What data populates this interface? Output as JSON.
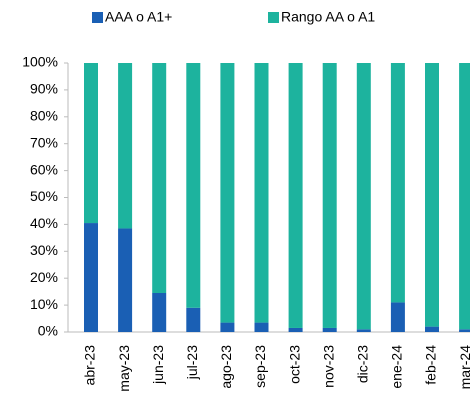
{
  "chart_data": {
    "type": "stacked_bar",
    "categories": [
      "abr-23",
      "may-23",
      "jun-23",
      "jul-23",
      "ago-23",
      "sep-23",
      "oct-23",
      "nov-23",
      "dic-23",
      "ene-24",
      "feb-24",
      "mar-24"
    ],
    "series": [
      {
        "name": "AAA o A1+",
        "color": "#1a5fb4",
        "values": [
          40.5,
          38.5,
          14.5,
          9,
          3.5,
          3.5,
          1.5,
          1.5,
          1,
          11,
          2,
          1
        ]
      },
      {
        "name": "Rango AA o A1",
        "color": "#1db39e",
        "values": [
          59.5,
          61.5,
          85.5,
          91,
          96.5,
          96.5,
          98.5,
          98.5,
          99,
          89,
          98,
          99
        ]
      }
    ],
    "ylim": [
      0,
      100
    ],
    "yticks": [
      {
        "value": 0,
        "label": "0%"
      },
      {
        "value": 10,
        "label": "10%"
      },
      {
        "value": 20,
        "label": "20%"
      },
      {
        "value": 30,
        "label": "30%"
      },
      {
        "value": 40,
        "label": "40%"
      },
      {
        "value": 50,
        "label": "50%"
      },
      {
        "value": 60,
        "label": "60%"
      },
      {
        "value": 70,
        "label": "70%"
      },
      {
        "value": 80,
        "label": "80%"
      },
      {
        "value": 90,
        "label": "90%"
      },
      {
        "value": 100,
        "label": "100%"
      }
    ],
    "legend": "top"
  }
}
